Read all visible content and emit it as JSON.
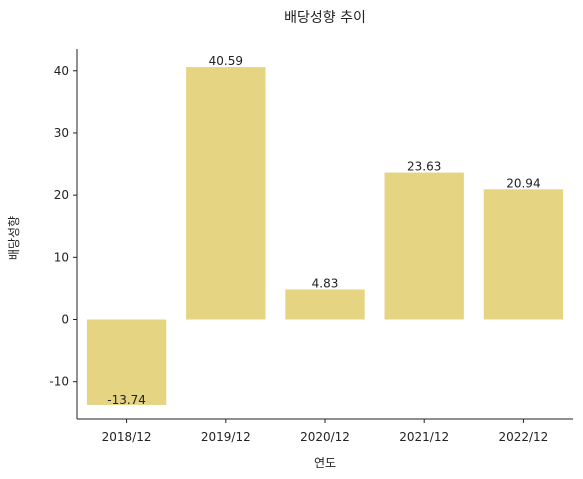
{
  "chart_data": {
    "type": "bar",
    "title": "배당성향 추이",
    "xlabel": "연도",
    "ylabel": "배당성향",
    "categories": [
      "2018/12",
      "2019/12",
      "2020/12",
      "2021/12",
      "2022/12"
    ],
    "values": [
      -13.74,
      40.59,
      4.83,
      23.63,
      20.94
    ],
    "data_labels": [
      "-13.74",
      "40.59",
      "4.83",
      "23.63",
      "20.94"
    ],
    "ylim": [
      -16,
      43.5
    ],
    "yticks": [
      -10,
      0,
      10,
      20,
      30,
      40
    ],
    "grid": false,
    "legend": "none",
    "colors": {
      "bar": "#E5D582",
      "axis": "#222222",
      "text": "#222222"
    }
  }
}
